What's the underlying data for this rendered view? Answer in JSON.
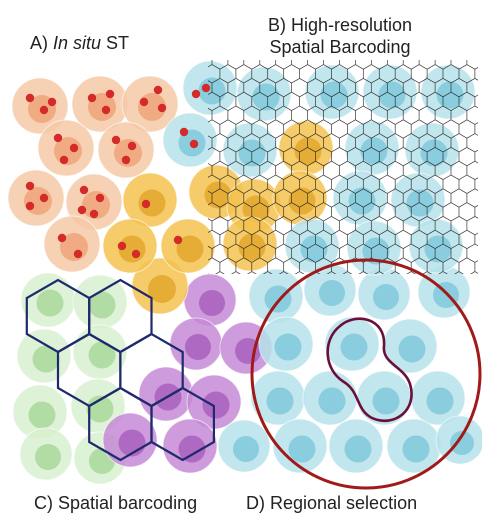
{
  "labels": {
    "a_prefix": "A) ",
    "a_italic": "In situ",
    "a_suffix": " ST",
    "b_line1": "B) High-resolution",
    "b_line2": "Spatial Barcoding",
    "c": "C) Spatial barcoding",
    "d": "D) Regional selection"
  },
  "colors": {
    "orange_cell": "#f6c9a7",
    "orange_nucleus": "#eea47a",
    "rna_dot": "#d42a2a",
    "cyan_cell": "#b6e2ea",
    "cyan_nucleus": "#7fc8da",
    "gold_cell": "#f4c24f",
    "gold_nucleus": "#e3a82e",
    "green_cell": "#d7f0cf",
    "green_nucleus": "#a9d99c",
    "purple_cell": "#c68ad6",
    "purple_nucleus": "#a862bd",
    "hex_outline_b": "#222222",
    "hex_outline_c": "#1e2a6b",
    "region_circle": "#a01a1a",
    "region_shape": "#6a0f3c"
  }
}
